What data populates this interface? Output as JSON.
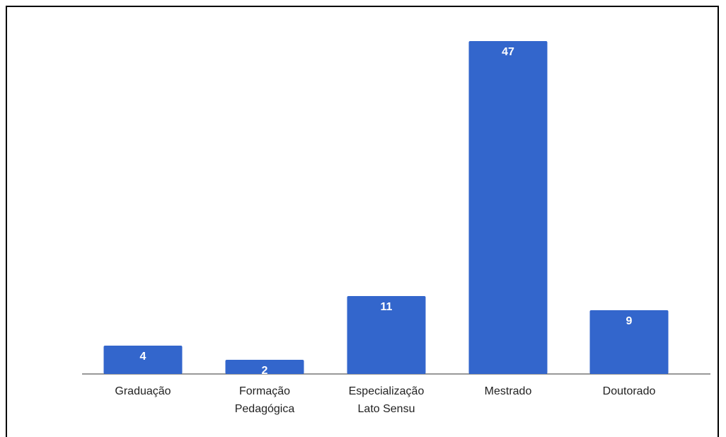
{
  "chart_data": {
    "type": "bar",
    "title": "",
    "xlabel": "",
    "ylabel": "",
    "categories": [
      [
        "Graduação"
      ],
      [
        "Formação",
        "Pedagógica"
      ],
      [
        "Especialização",
        "Lato Sensu"
      ],
      [
        "Mestrado"
      ],
      [
        "Doutorado"
      ]
    ],
    "values": [
      4,
      2,
      11,
      47,
      9
    ],
    "ylim": [
      0,
      47
    ],
    "grid": false,
    "legend": "none",
    "colors": {
      "bar": "#3366cc",
      "label_inside": "#ffffff",
      "label_outside": "#3366cc",
      "axis": "#333333"
    }
  }
}
